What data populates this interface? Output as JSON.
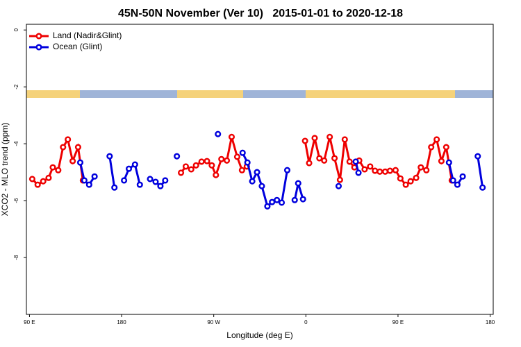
{
  "chart_data": {
    "type": "line",
    "title": "45N-50N November (Ver 10)   2015-01-01 to 2020-12-18",
    "x_label": "Longitude (deg E)",
    "y_label": "XCO2 - MLO trend (ppm)",
    "xlim": [
      87,
      543
    ],
    "ylim": [
      -10,
      0.2
    ],
    "xticks": [
      {
        "value": 90,
        "label": "90 E"
      },
      {
        "value": 180,
        "label": "180"
      },
      {
        "value": 270,
        "label": "90 W"
      },
      {
        "value": 360,
        "label": "0"
      },
      {
        "value": 450,
        "label": "90 E"
      },
      {
        "value": 540,
        "label": "180"
      }
    ],
    "yticks": [
      0,
      -2,
      -4,
      -6,
      -8
    ],
    "legend": "top-left",
    "series": [
      {
        "name": "Land (Nadir&Glint)",
        "color": "#ee0000",
        "x": [
          92.7,
          98.0,
          103.4,
          108.7,
          112.8,
          118.1,
          122.8,
          127.5,
          132.2,
          137.5,
          142.2,
          null,
          238.0,
          242.7,
          248.0,
          252.7,
          258.1,
          263.4,
          268.1,
          272.1,
          277.5,
          282.8,
          287.5,
          292.9,
          297.6,
          302.3,
          null,
          359.2,
          363.2,
          368.6,
          373.2,
          377.9,
          383.3,
          388.0,
          393.3,
          398.0,
          402.7,
          407.4,
          412.1,
          417.4,
          422.8,
          427.5,
          432.2,
          437.5,
          442.2,
          447.6,
          452.3,
          457.6,
          462.3,
          467.7,
          472.3,
          477.7,
          482.4,
          487.8,
          492.4,
          497.1,
          502.5
        ],
        "values": [
          -5.24,
          -5.44,
          -5.32,
          -5.2,
          -4.83,
          -4.93,
          -4.12,
          -3.85,
          -4.61,
          -4.12,
          -5.29,
          null,
          -5.02,
          -4.8,
          -4.9,
          -4.76,
          -4.63,
          -4.61,
          -4.76,
          -5.1,
          -4.54,
          -4.59,
          -3.76,
          -4.46,
          -4.93,
          -4.8,
          null,
          -3.9,
          -4.68,
          -3.8,
          -4.51,
          -4.59,
          -3.76,
          -4.51,
          -5.27,
          -3.85,
          -4.63,
          -4.83,
          -4.59,
          -4.9,
          -4.8,
          -4.95,
          -4.98,
          -4.98,
          -4.95,
          -4.93,
          -5.22,
          -5.44,
          -5.32,
          -5.2,
          -4.83,
          -4.93,
          -4.12,
          -3.85,
          -4.61,
          -4.12,
          -5.29
        ]
      },
      {
        "name": "Ocean (Glint)",
        "color": "#0000dd",
        "x": [
          139.6,
          143.6,
          148.3,
          153.6,
          null,
          168.3,
          173.0,
          null,
          182.4,
          187.1,
          193.1,
          197.8,
          null,
          207.8,
          213.2,
          217.9,
          222.6,
          null,
          234.0,
          null,
          274.1,
          null,
          298.2,
          302.9,
          307.6,
          312.3,
          317.0,
          322.4,
          327.0,
          331.7,
          336.4,
          341.8,
          null,
          349.1,
          352.5,
          357.2,
          null,
          392.0,
          null,
          408.7,
          411.4,
          null,
          499.8,
          503.8,
          508.0,
          513.2,
          null,
          527.9,
          532.6
        ],
        "values": [
          -4.66,
          -5.29,
          -5.44,
          -5.15,
          null,
          -4.44,
          -5.54,
          null,
          -5.29,
          -4.88,
          -4.73,
          -5.44,
          null,
          -5.24,
          -5.34,
          -5.49,
          -5.29,
          null,
          -4.44,
          null,
          -3.66,
          null,
          -4.32,
          -4.66,
          -5.32,
          -5.0,
          -5.49,
          -6.2,
          -6.05,
          -5.98,
          -6.07,
          -4.93,
          null,
          -5.98,
          -5.39,
          -5.95,
          null,
          -5.49,
          null,
          -4.63,
          -5.02,
          null,
          -4.66,
          -5.29,
          -5.44,
          -5.15,
          null,
          -4.44,
          -5.54
        ]
      }
    ]
  }
}
